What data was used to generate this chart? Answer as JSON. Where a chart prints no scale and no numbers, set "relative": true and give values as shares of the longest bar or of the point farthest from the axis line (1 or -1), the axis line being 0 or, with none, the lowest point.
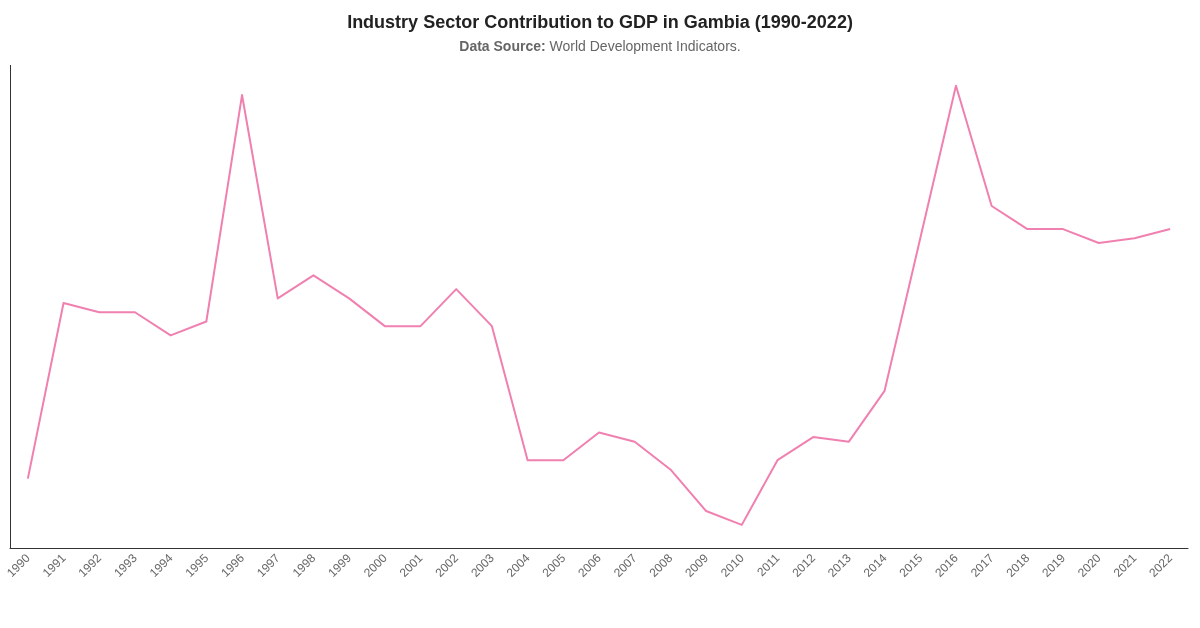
{
  "chart_data": {
    "type": "line",
    "title": "Industry Sector Contribution to GDP in Gambia (1990-2022)",
    "subtitle": "Data Source: World Development Indicators.",
    "relative": true,
    "grid": false,
    "marker": "none",
    "line_style": "solid",
    "categories": [
      "1990",
      "1991",
      "1992",
      "1993",
      "1994",
      "1995",
      "1996",
      "1997",
      "1998",
      "1999",
      "2000",
      "2001",
      "2002",
      "2003",
      "2004",
      "2005",
      "2006",
      "2007",
      "2008",
      "2009",
      "2010",
      "2011",
      "2012",
      "2013",
      "2014",
      "2015",
      "2016",
      "2017",
      "2018",
      "2019",
      "2020",
      "2021",
      "2022"
    ],
    "series": [
      {
        "color": "#f080b0",
        "values": [
          0.15,
          0.53,
          0.51,
          0.51,
          0.46,
          0.49,
          0.98,
          0.54,
          0.59,
          0.54,
          0.48,
          0.48,
          0.56,
          0.48,
          0.19,
          0.19,
          0.25,
          0.23,
          0.17,
          0.08,
          0.05,
          0.19,
          0.24,
          0.23,
          0.34,
          0.67,
          1,
          0.74,
          0.69,
          0.69,
          0.66,
          0.67,
          0.69
        ]
      }
    ]
  }
}
